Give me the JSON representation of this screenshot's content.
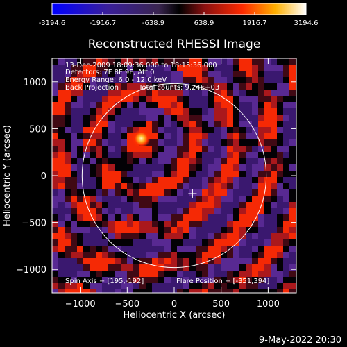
{
  "colorbar": {
    "ticks": [
      "-3194.6",
      "-1916.7",
      "-638.9",
      "638.9",
      "1916.7",
      "3194.6"
    ],
    "range": [
      -3194.6,
      3194.6
    ]
  },
  "chart_data": {
    "type": "heatmap",
    "title": "Reconstructed RHESSI Image",
    "xlabel": "Heliocentric X (arcsec)",
    "ylabel": "Heliocentric Y (arcsec)",
    "xlim": [
      -1300,
      1300
    ],
    "ylim": [
      -1250,
      1250
    ],
    "xticks": [
      -1000,
      -500,
      0,
      500,
      1000
    ],
    "yticks": [
      -1000,
      -500,
      0,
      500,
      1000
    ],
    "colormap": "black-blue-purple-red-yellow-white",
    "solar_disk_radius": 980,
    "spin_axis_marker": [
      195,
      -192
    ],
    "bright_source": [
      -351,
      394
    ],
    "annotations": [
      "13-Dec-2009 18:09:36.000 to 18:15:36.000",
      "Detectors: 7F 8F 9F, Att 0",
      "Energy Range: 6.0 - 12.0 keV",
      "Back Projection",
      "Total counts: 9.24E+03"
    ],
    "footer": {
      "spin_axis": "Spin Axis = [195,-192]",
      "flare_position": "Flare Position = [-351,394]"
    }
  },
  "timestamp": "9-May-2022 20:30"
}
